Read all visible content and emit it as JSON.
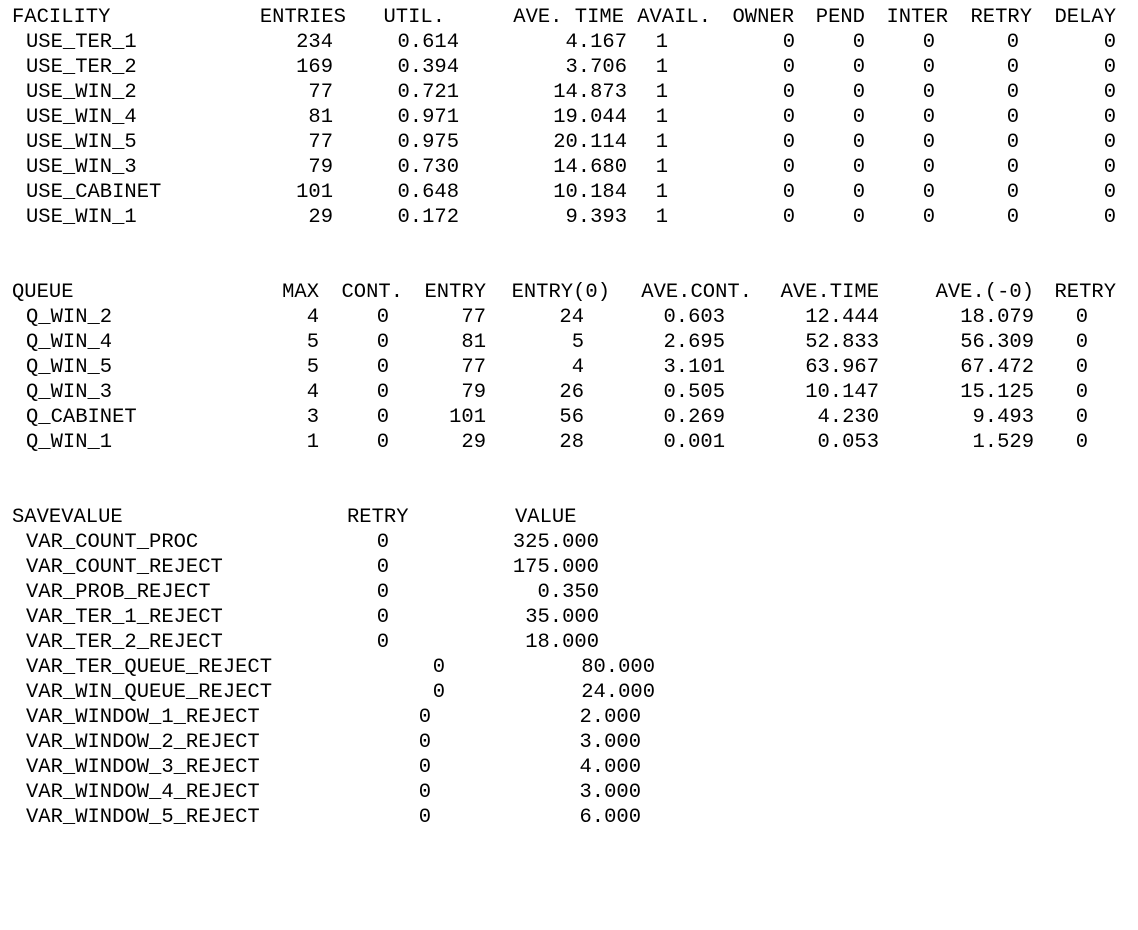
{
  "facility": {
    "headers": [
      "FACILITY",
      "ENTRIES",
      "UTIL.",
      "AVE. TIME",
      "AVAIL.",
      "OWNER",
      "PEND",
      "INTER",
      "RETRY",
      "DELAY"
    ],
    "rows": [
      [
        "USE_TER_1",
        "234",
        "0.614",
        "4.167",
        "1",
        "0",
        "0",
        "0",
        "0",
        "0"
      ],
      [
        "USE_TER_2",
        "169",
        "0.394",
        "3.706",
        "1",
        "0",
        "0",
        "0",
        "0",
        "0"
      ],
      [
        "USE_WIN_2",
        "77",
        "0.721",
        "14.873",
        "1",
        "0",
        "0",
        "0",
        "0",
        "0"
      ],
      [
        "USE_WIN_4",
        "81",
        "0.971",
        "19.044",
        "1",
        "0",
        "0",
        "0",
        "0",
        "0"
      ],
      [
        "USE_WIN_5",
        "77",
        "0.975",
        "20.114",
        "1",
        "0",
        "0",
        "0",
        "0",
        "0"
      ],
      [
        "USE_WIN_3",
        "79",
        "0.730",
        "14.680",
        "1",
        "0",
        "0",
        "0",
        "0",
        "0"
      ],
      [
        "USE_CABINET",
        "101",
        "0.648",
        "10.184",
        "1",
        "0",
        "0",
        "0",
        "0",
        "0"
      ],
      [
        "USE_WIN_1",
        "29",
        "0.172",
        "9.393",
        "1",
        "0",
        "0",
        "0",
        "0",
        "0"
      ]
    ]
  },
  "queue": {
    "headers": [
      "QUEUE",
      "MAX",
      "CONT.",
      "ENTRY",
      "ENTRY(0)",
      "AVE.CONT.",
      "AVE.TIME",
      "AVE.(-0)",
      "RETRY"
    ],
    "rows": [
      [
        "Q_WIN_2",
        "4",
        "0",
        "77",
        "24",
        "0.603",
        "12.444",
        "18.079",
        "0"
      ],
      [
        "Q_WIN_4",
        "5",
        "0",
        "81",
        "5",
        "2.695",
        "52.833",
        "56.309",
        "0"
      ],
      [
        "Q_WIN_5",
        "5",
        "0",
        "77",
        "4",
        "3.101",
        "63.967",
        "67.472",
        "0"
      ],
      [
        "Q_WIN_3",
        "4",
        "0",
        "79",
        "26",
        "0.505",
        "10.147",
        "15.125",
        "0"
      ],
      [
        "Q_CABINET",
        "3",
        "0",
        "101",
        "56",
        "0.269",
        "4.230",
        "9.493",
        "0"
      ],
      [
        "Q_WIN_1",
        "1",
        "0",
        "29",
        "28",
        "0.001",
        "0.053",
        "1.529",
        "0"
      ]
    ]
  },
  "savevalue": {
    "headers": [
      "SAVEVALUE",
      "RETRY",
      "VALUE"
    ],
    "rows": [
      [
        "VAR_COUNT_PROC",
        "0",
        "325.000"
      ],
      [
        "VAR_COUNT_REJECT",
        "0",
        "175.000"
      ],
      [
        "VAR_PROB_REJECT",
        "0",
        "0.350"
      ],
      [
        "VAR_TER_1_REJECT",
        "0",
        "35.000"
      ],
      [
        "VAR_TER_2_REJECT",
        "0",
        "18.000"
      ],
      [
        "VAR_TER_QUEUE_REJECT",
        "0",
        "80.000"
      ],
      [
        "VAR_WIN_QUEUE_REJECT",
        "0",
        "24.000"
      ],
      [
        "VAR_WINDOW_1_REJECT",
        "0",
        "2.000"
      ],
      [
        "VAR_WINDOW_2_REJECT",
        "0",
        "3.000"
      ],
      [
        "VAR_WINDOW_3_REJECT",
        "0",
        "4.000"
      ],
      [
        "VAR_WINDOW_4_REJECT",
        "0",
        "3.000"
      ],
      [
        "VAR_WINDOW_5_REJECT",
        "0",
        "6.000"
      ]
    ]
  }
}
